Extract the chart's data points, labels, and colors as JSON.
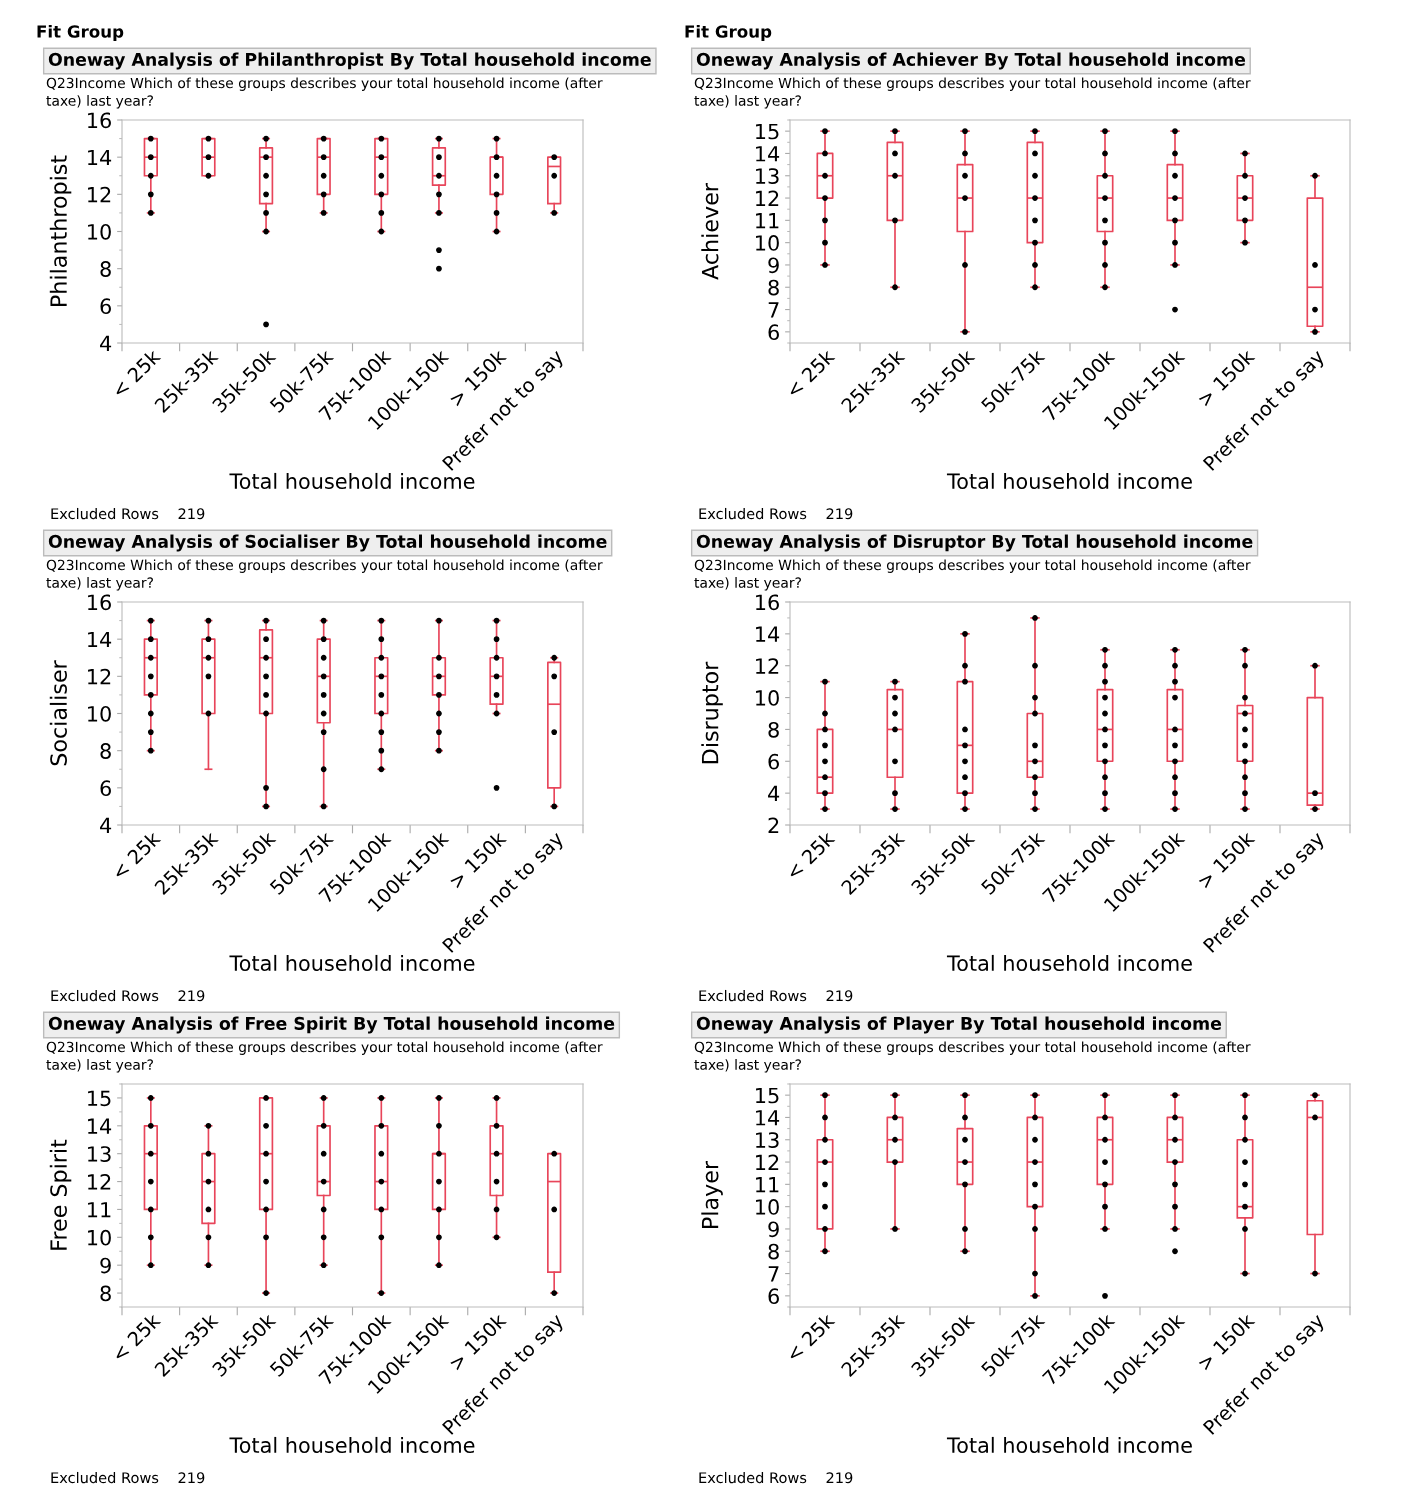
{
  "chart_data": [
    {
      "type": "box",
      "title": "Oneway Analysis of Philanthropist By Total household income",
      "subtitle": "Q23Income Which of these groups describes your total household income (after taxe) last year?",
      "xlabel": "Total household income",
      "ylabel": "Philanthropist",
      "annotations": [
        "Fit Group",
        "Excluded Rows    219"
      ],
      "categories": [
        "< 25k",
        "25k-35k",
        "35k-50k",
        "50k-75k",
        "75k-100k",
        "100k-150k",
        "> 150k",
        "Prefer not to say"
      ],
      "color": "#e8455a",
      "ylim": [
        4,
        16
      ],
      "yticks": [
        4,
        6,
        8,
        10,
        12,
        14,
        16
      ],
      "grid": false,
      "boxes": [
        {
          "low": 11,
          "q1": 13,
          "median": 14,
          "q3": 15,
          "high": 15
        },
        {
          "low": 13,
          "q1": 13,
          "median": 14,
          "q3": 15,
          "high": 15
        },
        {
          "low": 10,
          "q1": 11.5,
          "median": 14,
          "q3": 14.5,
          "high": 15
        },
        {
          "low": 11,
          "q1": 12,
          "median": 14,
          "q3": 15,
          "high": 15
        },
        {
          "low": 10,
          "q1": 12,
          "median": 14,
          "q3": 15,
          "high": 15
        },
        {
          "low": 11,
          "q1": 12.5,
          "median": 13,
          "q3": 14.5,
          "high": 15
        },
        {
          "low": 10,
          "q1": 12,
          "median": 14,
          "q3": 14,
          "high": 15
        },
        {
          "low": 11,
          "q1": 11.5,
          "median": 13.5,
          "q3": 14,
          "high": 14
        }
      ],
      "series": [
        {
          "type": "scatter",
          "color": "#000000",
          "x": [
            "< 25k",
            "< 25k",
            "< 25k",
            "< 25k",
            "< 25k",
            "25k-35k",
            "25k-35k",
            "25k-35k",
            "35k-50k",
            "35k-50k",
            "35k-50k",
            "35k-50k",
            "35k-50k",
            "35k-50k",
            "35k-50k",
            "50k-75k",
            "50k-75k",
            "50k-75k",
            "50k-75k",
            "50k-75k",
            "75k-100k",
            "75k-100k",
            "75k-100k",
            "75k-100k",
            "75k-100k",
            "75k-100k",
            "100k-150k",
            "100k-150k",
            "100k-150k",
            "100k-150k",
            "100k-150k",
            "100k-150k",
            "100k-150k",
            "> 150k",
            "> 150k",
            "> 150k",
            "> 150k",
            "> 150k",
            "> 150k",
            "Prefer not to say",
            "Prefer not to say",
            "Prefer not to say"
          ],
          "values": [
            15,
            14,
            13,
            12,
            11,
            15,
            14,
            13,
            15,
            14,
            13,
            12,
            11,
            10,
            5,
            15,
            14,
            13,
            12,
            11,
            15,
            14,
            13,
            12,
            11,
            10,
            15,
            14,
            13,
            12,
            11,
            9,
            8,
            15,
            14,
            13,
            12,
            11,
            10,
            14,
            13,
            11
          ]
        }
      ]
    },
    {
      "type": "box",
      "title": "Oneway Analysis of Achiever By Total household income",
      "subtitle": "Q23Income Which of these groups describes your total household income (after taxe) last year?",
      "xlabel": "Total household income",
      "ylabel": "Achiever",
      "annotations": [
        "Fit Group",
        "Excluded Rows    219"
      ],
      "categories": [
        "< 25k",
        "25k-35k",
        "35k-50k",
        "50k-75k",
        "75k-100k",
        "100k-150k",
        "> 150k",
        "Prefer not to say"
      ],
      "color": "#e8455a",
      "ylim": [
        5.5,
        15.5
      ],
      "yticks": [
        6,
        7,
        8,
        9,
        10,
        11,
        12,
        13,
        14,
        15
      ],
      "grid": false,
      "boxes": [
        {
          "low": 9,
          "q1": 12,
          "median": 13,
          "q3": 14,
          "high": 15
        },
        {
          "low": 8,
          "q1": 11,
          "median": 13,
          "q3": 14.5,
          "high": 15
        },
        {
          "low": 6,
          "q1": 10.5,
          "median": 12,
          "q3": 13.5,
          "high": 15
        },
        {
          "low": 8,
          "q1": 10,
          "median": 12,
          "q3": 14.5,
          "high": 15
        },
        {
          "low": 8,
          "q1": 10.5,
          "median": 12,
          "q3": 13,
          "high": 15
        },
        {
          "low": 9,
          "q1": 11,
          "median": 12,
          "q3": 13.5,
          "high": 15
        },
        {
          "low": 10,
          "q1": 11,
          "median": 12,
          "q3": 13,
          "high": 14
        },
        {
          "low": 6,
          "q1": 6.25,
          "median": 8,
          "q3": 12,
          "high": 13
        }
      ],
      "series": [
        {
          "type": "scatter",
          "color": "#000000",
          "x": [
            "< 25k",
            "< 25k",
            "< 25k",
            "< 25k",
            "< 25k",
            "< 25k",
            "< 25k",
            "25k-35k",
            "25k-35k",
            "25k-35k",
            "25k-35k",
            "25k-35k",
            "35k-50k",
            "35k-50k",
            "35k-50k",
            "35k-50k",
            "35k-50k",
            "35k-50k",
            "50k-75k",
            "50k-75k",
            "50k-75k",
            "50k-75k",
            "50k-75k",
            "50k-75k",
            "50k-75k",
            "50k-75k",
            "75k-100k",
            "75k-100k",
            "75k-100k",
            "75k-100k",
            "75k-100k",
            "75k-100k",
            "75k-100k",
            "75k-100k",
            "100k-150k",
            "100k-150k",
            "100k-150k",
            "100k-150k",
            "100k-150k",
            "100k-150k",
            "100k-150k",
            "100k-150k",
            "> 150k",
            "> 150k",
            "> 150k",
            "> 150k",
            "> 150k",
            "Prefer not to say",
            "Prefer not to say",
            "Prefer not to say",
            "Prefer not to say"
          ],
          "values": [
            15,
            14,
            13,
            12,
            11,
            10,
            9,
            15,
            14,
            13,
            11,
            8,
            15,
            14,
            13,
            12,
            9,
            6,
            15,
            14,
            13,
            12,
            11,
            10,
            9,
            8,
            15,
            14,
            13,
            12,
            11,
            10,
            9,
            8,
            15,
            14,
            13,
            12,
            11,
            10,
            9,
            7,
            14,
            13,
            12,
            11,
            10,
            13,
            9,
            7,
            6
          ]
        }
      ]
    },
    {
      "type": "box",
      "title": "Oneway Analysis of Socialiser By Total household income",
      "subtitle": "Q23Income Which of these groups describes your total household income (after taxe) last year?",
      "xlabel": "Total household income",
      "ylabel": "Socialiser",
      "annotations": [
        "Excluded Rows    219"
      ],
      "categories": [
        "< 25k",
        "25k-35k",
        "35k-50k",
        "50k-75k",
        "75k-100k",
        "100k-150k",
        "> 150k",
        "Prefer not to say"
      ],
      "color": "#e8455a",
      "ylim": [
        4,
        16
      ],
      "yticks": [
        4,
        6,
        8,
        10,
        12,
        14,
        16
      ],
      "grid": false,
      "boxes": [
        {
          "low": 8,
          "q1": 11,
          "median": 13,
          "q3": 14,
          "high": 15
        },
        {
          "low": 7,
          "q1": 10,
          "median": 13,
          "q3": 14,
          "high": 15
        },
        {
          "low": 5,
          "q1": 10,
          "median": 13,
          "q3": 14.5,
          "high": 15
        },
        {
          "low": 5,
          "q1": 9.5,
          "median": 12,
          "q3": 14,
          "high": 15
        },
        {
          "low": 7,
          "q1": 10,
          "median": 12,
          "q3": 13,
          "high": 15
        },
        {
          "low": 8,
          "q1": 11,
          "median": 12,
          "q3": 13,
          "high": 15
        },
        {
          "low": 10,
          "q1": 10.5,
          "median": 12,
          "q3": 13,
          "high": 15
        },
        {
          "low": 5,
          "q1": 6,
          "median": 10.5,
          "q3": 12.75,
          "high": 13
        }
      ],
      "series": [
        {
          "type": "scatter",
          "color": "#000000",
          "x": [
            "< 25k",
            "< 25k",
            "< 25k",
            "< 25k",
            "< 25k",
            "< 25k",
            "< 25k",
            "< 25k",
            "25k-35k",
            "25k-35k",
            "25k-35k",
            "25k-35k",
            "25k-35k",
            "35k-50k",
            "35k-50k",
            "35k-50k",
            "35k-50k",
            "35k-50k",
            "35k-50k",
            "35k-50k",
            "35k-50k",
            "50k-75k",
            "50k-75k",
            "50k-75k",
            "50k-75k",
            "50k-75k",
            "50k-75k",
            "50k-75k",
            "50k-75k",
            "50k-75k",
            "75k-100k",
            "75k-100k",
            "75k-100k",
            "75k-100k",
            "75k-100k",
            "75k-100k",
            "75k-100k",
            "75k-100k",
            "75k-100k",
            "100k-150k",
            "100k-150k",
            "100k-150k",
            "100k-150k",
            "100k-150k",
            "100k-150k",
            "100k-150k",
            "> 150k",
            "> 150k",
            "> 150k",
            "> 150k",
            "> 150k",
            "> 150k",
            "> 150k",
            "Prefer not to say",
            "Prefer not to say",
            "Prefer not to say",
            "Prefer not to say"
          ],
          "values": [
            15,
            14,
            13,
            12,
            11,
            10,
            9,
            8,
            15,
            14,
            13,
            12,
            10,
            15,
            14,
            13,
            12,
            11,
            10,
            6,
            5,
            15,
            14,
            13,
            12,
            11,
            10,
            9,
            7,
            5,
            15,
            14,
            13,
            12,
            11,
            10,
            9,
            8,
            7,
            15,
            13,
            12,
            11,
            10,
            9,
            8,
            15,
            14,
            13,
            12,
            11,
            10,
            6,
            13,
            12,
            9,
            5
          ]
        }
      ]
    },
    {
      "type": "box",
      "title": "Oneway Analysis of Disruptor By Total household income",
      "subtitle": "Q23Income Which of these groups describes your total household income (after taxe) last year?",
      "xlabel": "Total household income",
      "ylabel": "Disruptor",
      "annotations": [
        "Excluded Rows    219"
      ],
      "categories": [
        "< 25k",
        "25k-35k",
        "35k-50k",
        "50k-75k",
        "75k-100k",
        "100k-150k",
        "> 150k",
        "Prefer not to say"
      ],
      "color": "#e8455a",
      "ylim": [
        2,
        16
      ],
      "yticks": [
        2,
        4,
        6,
        8,
        10,
        12,
        14,
        16
      ],
      "grid": false,
      "boxes": [
        {
          "low": 3,
          "q1": 4,
          "median": 5,
          "q3": 8,
          "high": 11
        },
        {
          "low": 3,
          "q1": 5,
          "median": 8,
          "q3": 10.5,
          "high": 11
        },
        {
          "low": 3,
          "q1": 4,
          "median": 7,
          "q3": 11,
          "high": 14
        },
        {
          "low": 3,
          "q1": 5,
          "median": 6,
          "q3": 9,
          "high": 15
        },
        {
          "low": 3,
          "q1": 6,
          "median": 8,
          "q3": 10.5,
          "high": 13
        },
        {
          "low": 3,
          "q1": 6,
          "median": 8,
          "q3": 10.5,
          "high": 13
        },
        {
          "low": 3,
          "q1": 6,
          "median": 9,
          "q3": 9.5,
          "high": 13
        },
        {
          "low": 3,
          "q1": 3.25,
          "median": 4,
          "q3": 10,
          "high": 12
        }
      ],
      "series": [
        {
          "type": "scatter",
          "color": "#000000",
          "x": [
            "< 25k",
            "< 25k",
            "< 25k",
            "< 25k",
            "< 25k",
            "< 25k",
            "< 25k",
            "< 25k",
            "25k-35k",
            "25k-35k",
            "25k-35k",
            "25k-35k",
            "25k-35k",
            "25k-35k",
            "25k-35k",
            "35k-50k",
            "35k-50k",
            "35k-50k",
            "35k-50k",
            "35k-50k",
            "35k-50k",
            "35k-50k",
            "35k-50k",
            "35k-50k",
            "50k-75k",
            "50k-75k",
            "50k-75k",
            "50k-75k",
            "50k-75k",
            "50k-75k",
            "50k-75k",
            "50k-75k",
            "50k-75k",
            "75k-100k",
            "75k-100k",
            "75k-100k",
            "75k-100k",
            "75k-100k",
            "75k-100k",
            "75k-100k",
            "75k-100k",
            "75k-100k",
            "75k-100k",
            "75k-100k",
            "100k-150k",
            "100k-150k",
            "100k-150k",
            "100k-150k",
            "100k-150k",
            "100k-150k",
            "100k-150k",
            "100k-150k",
            "100k-150k",
            "100k-150k",
            "> 150k",
            "> 150k",
            "> 150k",
            "> 150k",
            "> 150k",
            "> 150k",
            "> 150k",
            "> 150k",
            "> 150k",
            "> 150k",
            "Prefer not to say",
            "Prefer not to say",
            "Prefer not to say"
          ],
          "values": [
            11,
            9,
            8,
            7,
            6,
            5,
            4,
            3,
            11,
            10,
            9,
            8,
            6,
            4,
            3,
            14,
            12,
            11,
            8,
            7,
            6,
            5,
            4,
            3,
            15,
            12,
            10,
            9,
            7,
            6,
            5,
            4,
            3,
            13,
            12,
            11,
            10,
            9,
            8,
            7,
            6,
            5,
            4,
            3,
            13,
            12,
            11,
            10,
            8,
            7,
            6,
            5,
            4,
            3,
            13,
            12,
            10,
            9,
            8,
            7,
            6,
            5,
            4,
            3,
            12,
            4,
            3
          ]
        }
      ]
    },
    {
      "type": "box",
      "title": "Oneway Analysis of Free Spirit By Total household income",
      "subtitle": "Q23Income Which of these groups describes your total household income (after taxe) last year?",
      "xlabel": "Total household income",
      "ylabel": "Free Spirit",
      "annotations": [
        "Excluded Rows    219"
      ],
      "categories": [
        "< 25k",
        "25k-35k",
        "35k-50k",
        "50k-75k",
        "75k-100k",
        "100k-150k",
        "> 150k",
        "Prefer not to say"
      ],
      "color": "#e8455a",
      "ylim": [
        7.5,
        15.5
      ],
      "yticks": [
        8,
        9,
        10,
        11,
        12,
        13,
        14,
        15
      ],
      "grid": false,
      "boxes": [
        {
          "low": 9,
          "q1": 11,
          "median": 13,
          "q3": 14,
          "high": 15
        },
        {
          "low": 9,
          "q1": 10.5,
          "median": 12,
          "q3": 13,
          "high": 14
        },
        {
          "low": 8,
          "q1": 11,
          "median": 13,
          "q3": 15,
          "high": 15
        },
        {
          "low": 9,
          "q1": 11.5,
          "median": 12,
          "q3": 14,
          "high": 15
        },
        {
          "low": 8,
          "q1": 11,
          "median": 12,
          "q3": 14,
          "high": 15
        },
        {
          "low": 9,
          "q1": 11,
          "median": 13,
          "q3": 13,
          "high": 15
        },
        {
          "low": 10,
          "q1": 11.5,
          "median": 13,
          "q3": 14,
          "high": 15
        },
        {
          "low": 8,
          "q1": 8.75,
          "median": 12,
          "q3": 13,
          "high": 13
        }
      ],
      "series": [
        {
          "type": "scatter",
          "color": "#000000",
          "x": [
            "< 25k",
            "< 25k",
            "< 25k",
            "< 25k",
            "< 25k",
            "< 25k",
            "< 25k",
            "25k-35k",
            "25k-35k",
            "25k-35k",
            "25k-35k",
            "25k-35k",
            "25k-35k",
            "35k-50k",
            "35k-50k",
            "35k-50k",
            "35k-50k",
            "35k-50k",
            "35k-50k",
            "35k-50k",
            "50k-75k",
            "50k-75k",
            "50k-75k",
            "50k-75k",
            "50k-75k",
            "50k-75k",
            "50k-75k",
            "75k-100k",
            "75k-100k",
            "75k-100k",
            "75k-100k",
            "75k-100k",
            "75k-100k",
            "75k-100k",
            "100k-150k",
            "100k-150k",
            "100k-150k",
            "100k-150k",
            "100k-150k",
            "100k-150k",
            "100k-150k",
            "> 150k",
            "> 150k",
            "> 150k",
            "> 150k",
            "> 150k",
            "> 150k",
            "Prefer not to say",
            "Prefer not to say",
            "Prefer not to say"
          ],
          "values": [
            15,
            14,
            13,
            12,
            11,
            10,
            9,
            14,
            13,
            12,
            11,
            10,
            9,
            15,
            14,
            13,
            12,
            11,
            10,
            8,
            15,
            14,
            13,
            12,
            11,
            10,
            9,
            15,
            14,
            13,
            12,
            11,
            10,
            8,
            15,
            14,
            13,
            12,
            11,
            10,
            9,
            15,
            14,
            13,
            12,
            11,
            10,
            13,
            11,
            8
          ]
        }
      ]
    },
    {
      "type": "box",
      "title": "Oneway Analysis of Player By Total household income",
      "subtitle": "Q23Income Which of these groups describes your total household income (after taxe) last year?",
      "xlabel": "Total household income",
      "ylabel": "Player",
      "annotations": [
        "Excluded Rows    219"
      ],
      "categories": [
        "< 25k",
        "25k-35k",
        "35k-50k",
        "50k-75k",
        "75k-100k",
        "100k-150k",
        "> 150k",
        "Prefer not to say"
      ],
      "color": "#e8455a",
      "ylim": [
        5.5,
        15.5
      ],
      "yticks": [
        6,
        7,
        8,
        9,
        10,
        11,
        12,
        13,
        14,
        15
      ],
      "grid": false,
      "boxes": [
        {
          "low": 8,
          "q1": 9,
          "median": 12,
          "q3": 13,
          "high": 15
        },
        {
          "low": 9,
          "q1": 12,
          "median": 13,
          "q3": 14,
          "high": 15
        },
        {
          "low": 8,
          "q1": 11,
          "median": 12,
          "q3": 13.5,
          "high": 15
        },
        {
          "low": 6,
          "q1": 10,
          "median": 12,
          "q3": 14,
          "high": 15
        },
        {
          "low": 9,
          "q1": 11,
          "median": 13,
          "q3": 14,
          "high": 15
        },
        {
          "low": 9,
          "q1": 12,
          "median": 13,
          "q3": 14,
          "high": 15
        },
        {
          "low": 7,
          "q1": 9.5,
          "median": 10,
          "q3": 13,
          "high": 15
        },
        {
          "low": 7,
          "q1": 8.75,
          "median": 14,
          "q3": 14.75,
          "high": 15
        }
      ],
      "series": [
        {
          "type": "scatter",
          "color": "#000000",
          "x": [
            "< 25k",
            "< 25k",
            "< 25k",
            "< 25k",
            "< 25k",
            "< 25k",
            "< 25k",
            "< 25k",
            "25k-35k",
            "25k-35k",
            "25k-35k",
            "25k-35k",
            "25k-35k",
            "35k-50k",
            "35k-50k",
            "35k-50k",
            "35k-50k",
            "35k-50k",
            "35k-50k",
            "35k-50k",
            "50k-75k",
            "50k-75k",
            "50k-75k",
            "50k-75k",
            "50k-75k",
            "50k-75k",
            "50k-75k",
            "50k-75k",
            "50k-75k",
            "75k-100k",
            "75k-100k",
            "75k-100k",
            "75k-100k",
            "75k-100k",
            "75k-100k",
            "75k-100k",
            "75k-100k",
            "100k-150k",
            "100k-150k",
            "100k-150k",
            "100k-150k",
            "100k-150k",
            "100k-150k",
            "100k-150k",
            "100k-150k",
            "> 150k",
            "> 150k",
            "> 150k",
            "> 150k",
            "> 150k",
            "> 150k",
            "> 150k",
            "> 150k",
            "Prefer not to say",
            "Prefer not to say",
            "Prefer not to say"
          ],
          "values": [
            15,
            14,
            13,
            12,
            11,
            10,
            9,
            8,
            15,
            14,
            13,
            12,
            9,
            15,
            14,
            13,
            12,
            11,
            9,
            8,
            15,
            14,
            13,
            12,
            11,
            10,
            9,
            7,
            6,
            15,
            14,
            13,
            12,
            11,
            10,
            9,
            6,
            15,
            14,
            13,
            12,
            11,
            10,
            9,
            8,
            15,
            14,
            13,
            12,
            11,
            10,
            9,
            7,
            15,
            14,
            7
          ]
        }
      ]
    }
  ]
}
